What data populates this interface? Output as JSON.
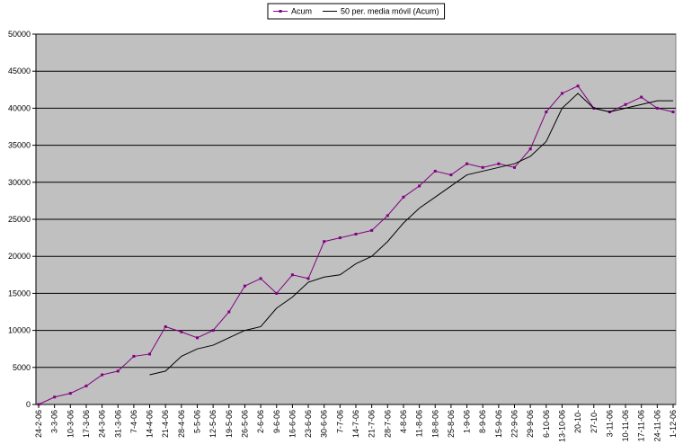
{
  "chart_data": {
    "type": "line",
    "categories": [
      "24-2-06",
      "3-3-06",
      "10-3-06",
      "17-3-06",
      "24-3-06",
      "31-3-06",
      "7-4-06",
      "14-4-06",
      "21-4-06",
      "28-4-06",
      "5-5-06",
      "12-5-06",
      "19-5-06",
      "26-5-06",
      "2-6-06",
      "9-6-06",
      "16-6-06",
      "23-6-06",
      "30-6-06",
      "7-7-06",
      "14-7-06",
      "21-7-06",
      "28-7-06",
      "4-8-06",
      "11-8-06",
      "18-8-06",
      "25-8-06",
      "1-9-06",
      "8-9-06",
      "15-9-06",
      "22-9-06",
      "29-9-06",
      "6-10-06",
      "13-10-06",
      "20-10-",
      "27-10-",
      "3-11-06",
      "10-11-06",
      "17-11-06",
      "24-11-06",
      "1-12-06"
    ],
    "series": [
      {
        "name": "Acum",
        "color": "#800080",
        "markers": true,
        "values": [
          0,
          1000,
          1500,
          2500,
          4000,
          4500,
          6500,
          6800,
          10500,
          9800,
          9000,
          10000,
          12500,
          16000,
          17000,
          15000,
          17500,
          17000,
          22000,
          22500,
          23000,
          23500,
          25500,
          28000,
          29500,
          31500,
          31000,
          32500,
          32000,
          32500,
          32000,
          34500,
          39500,
          42000,
          43000,
          40000,
          39500,
          40500,
          41500,
          40000,
          39500
        ]
      },
      {
        "name": "50 per. media móvil (Acum)",
        "color": "#000000",
        "markers": false,
        "values": [
          null,
          null,
          null,
          null,
          null,
          null,
          null,
          4000,
          4500,
          6500,
          7500,
          8000,
          9000,
          10000,
          10500,
          13000,
          14500,
          16500,
          17200,
          17500,
          19000,
          20000,
          22000,
          24500,
          26500,
          28000,
          29500,
          31000,
          31500,
          32000,
          32500,
          33500,
          35500,
          40000,
          42000,
          40000,
          39500,
          40000,
          40500,
          41000,
          41000
        ]
      }
    ],
    "ylim": [
      0,
      50000
    ],
    "yticks": [
      0,
      5000,
      10000,
      15000,
      20000,
      25000,
      30000,
      35000,
      40000,
      45000,
      50000
    ],
    "grid": true,
    "plot_background": "#c0c0c0",
    "legend": "top"
  }
}
